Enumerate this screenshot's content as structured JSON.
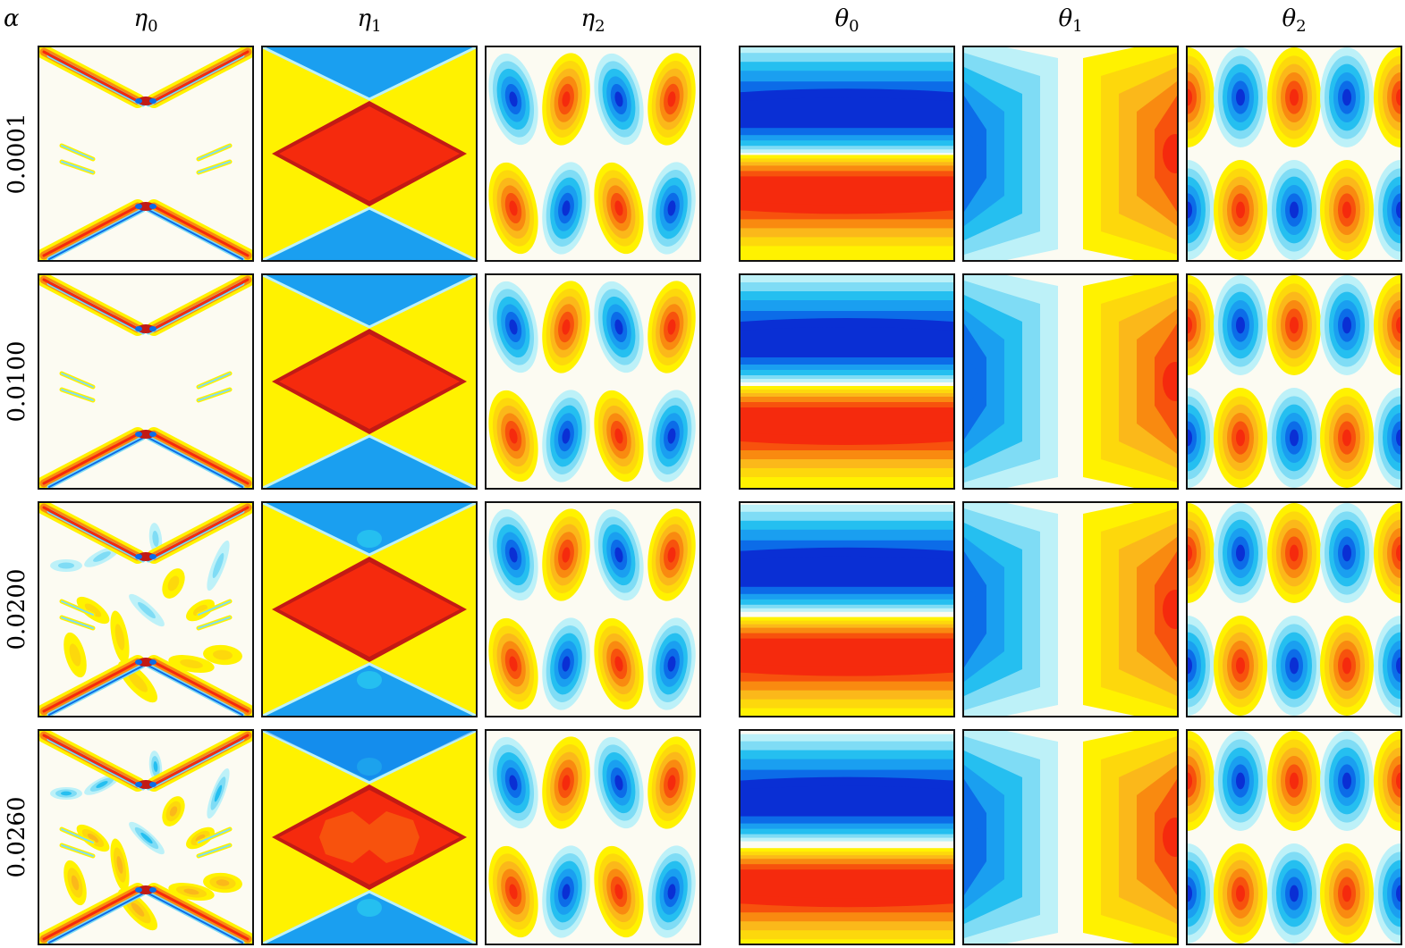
{
  "header": {
    "alpha_symbol": "α"
  },
  "columns": [
    {
      "symbol": "η",
      "subscript": "0"
    },
    {
      "symbol": "η",
      "subscript": "1"
    },
    {
      "symbol": "η",
      "subscript": "2"
    },
    {
      "symbol": "θ",
      "subscript": "0"
    },
    {
      "symbol": "θ",
      "subscript": "1"
    },
    {
      "symbol": "θ",
      "subscript": "2"
    }
  ],
  "rows": [
    {
      "alpha": "0.0001"
    },
    {
      "alpha": "0.0100"
    },
    {
      "alpha": "0.0200"
    },
    {
      "alpha": "0.0260"
    }
  ],
  "colors": {
    "background": "#fcfbf2",
    "dark_red": "#c21a14",
    "red": "#f52a0d",
    "orange_red": "#f7520d",
    "orange": "#f98a10",
    "light_orange": "#fbb81a",
    "gold": "#fdd80c",
    "yellow": "#fff200",
    "pale_cyan": "#bdf1f8",
    "light_cyan": "#7fdcf5",
    "cyan": "#25bff0",
    "light_blue": "#1a9ff0",
    "blue": "#0c6ce8",
    "dark_blue": "#0a2fd4"
  }
}
